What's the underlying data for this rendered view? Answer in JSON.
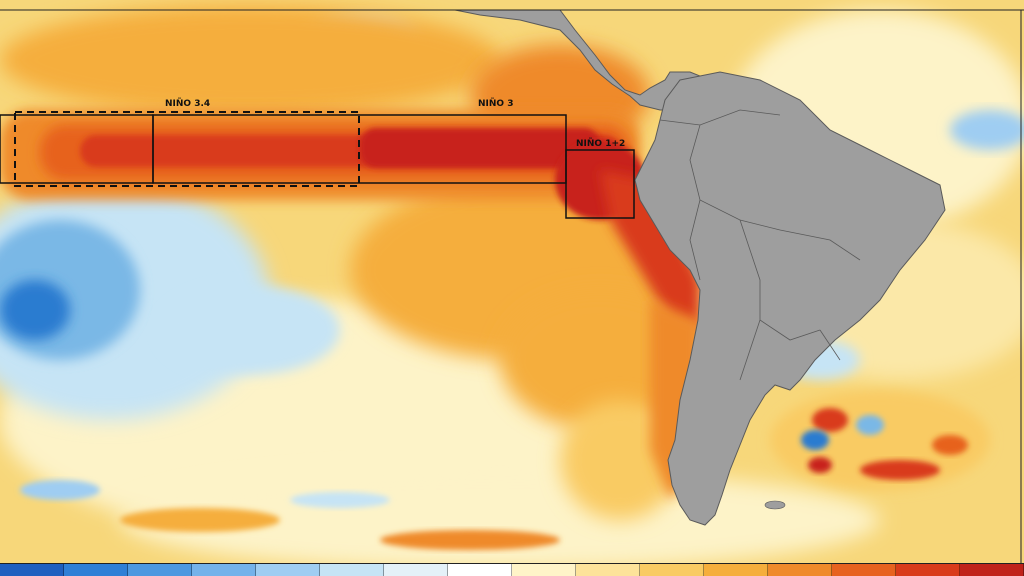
{
  "regions": [
    {
      "name": "NIÑO 3.4",
      "style": "dashed"
    },
    {
      "name": "NIÑO 3",
      "style": "solid"
    },
    {
      "name": "NIÑO 1+2",
      "style": "solid"
    }
  ],
  "colors": {
    "land": "#9e9e9e",
    "land_stroke": "#5a5a5a",
    "ocean_base": "#f7d77a",
    "anomaly_peak": "#c8201a",
    "anomaly_high": "#e8501e",
    "anomaly_mid": "#f39a2a",
    "anomaly_low": "#f6c04a",
    "neutral": "#fdf3c8",
    "cool_light": "#c6e4f5",
    "cool_mid": "#7ab8e6",
    "cool_deep": "#2a7cd0"
  },
  "colorbar_colors": [
    "#1f5fbf",
    "#2f7fd6",
    "#4d98e0",
    "#74b2ea",
    "#9fcdf2",
    "#c6e4f5",
    "#e4f1f8",
    "#ffffff",
    "#fff4c8",
    "#fde39a",
    "#f9cb63",
    "#f5ae3c",
    "#ef8a2a",
    "#e7621f",
    "#d93b1a",
    "#c0221a"
  ]
}
